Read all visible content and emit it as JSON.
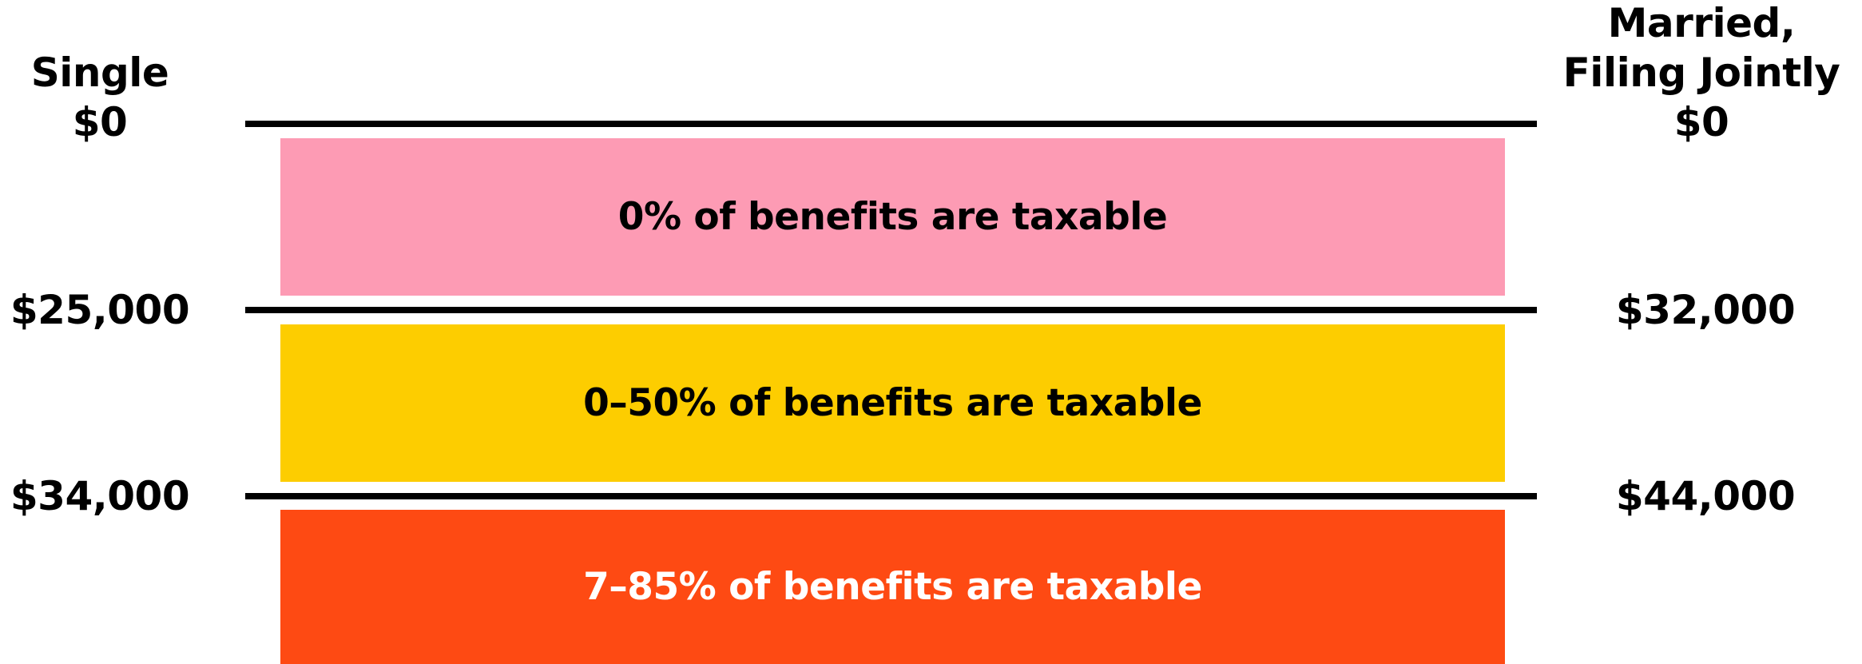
{
  "columns": {
    "single": {
      "heading": "Single",
      "thresholds": [
        "$0",
        "$25,000",
        "$34,000"
      ]
    },
    "married": {
      "heading_lines": [
        "Married,",
        "Filing Jointly"
      ],
      "thresholds": [
        "$0",
        "$32,000",
        "$44,000"
      ]
    }
  },
  "bands": [
    {
      "label": "0% of benefits are taxable",
      "color": "#fd9bb4",
      "text_color": "#000000"
    },
    {
      "label": "0–50% of benefits are taxable",
      "color": "#fdcd00",
      "text_color": "#000000"
    },
    {
      "label": "7–85% of benefits are taxable",
      "color": "#fe4a13",
      "text_color": "#ffffff"
    }
  ]
}
